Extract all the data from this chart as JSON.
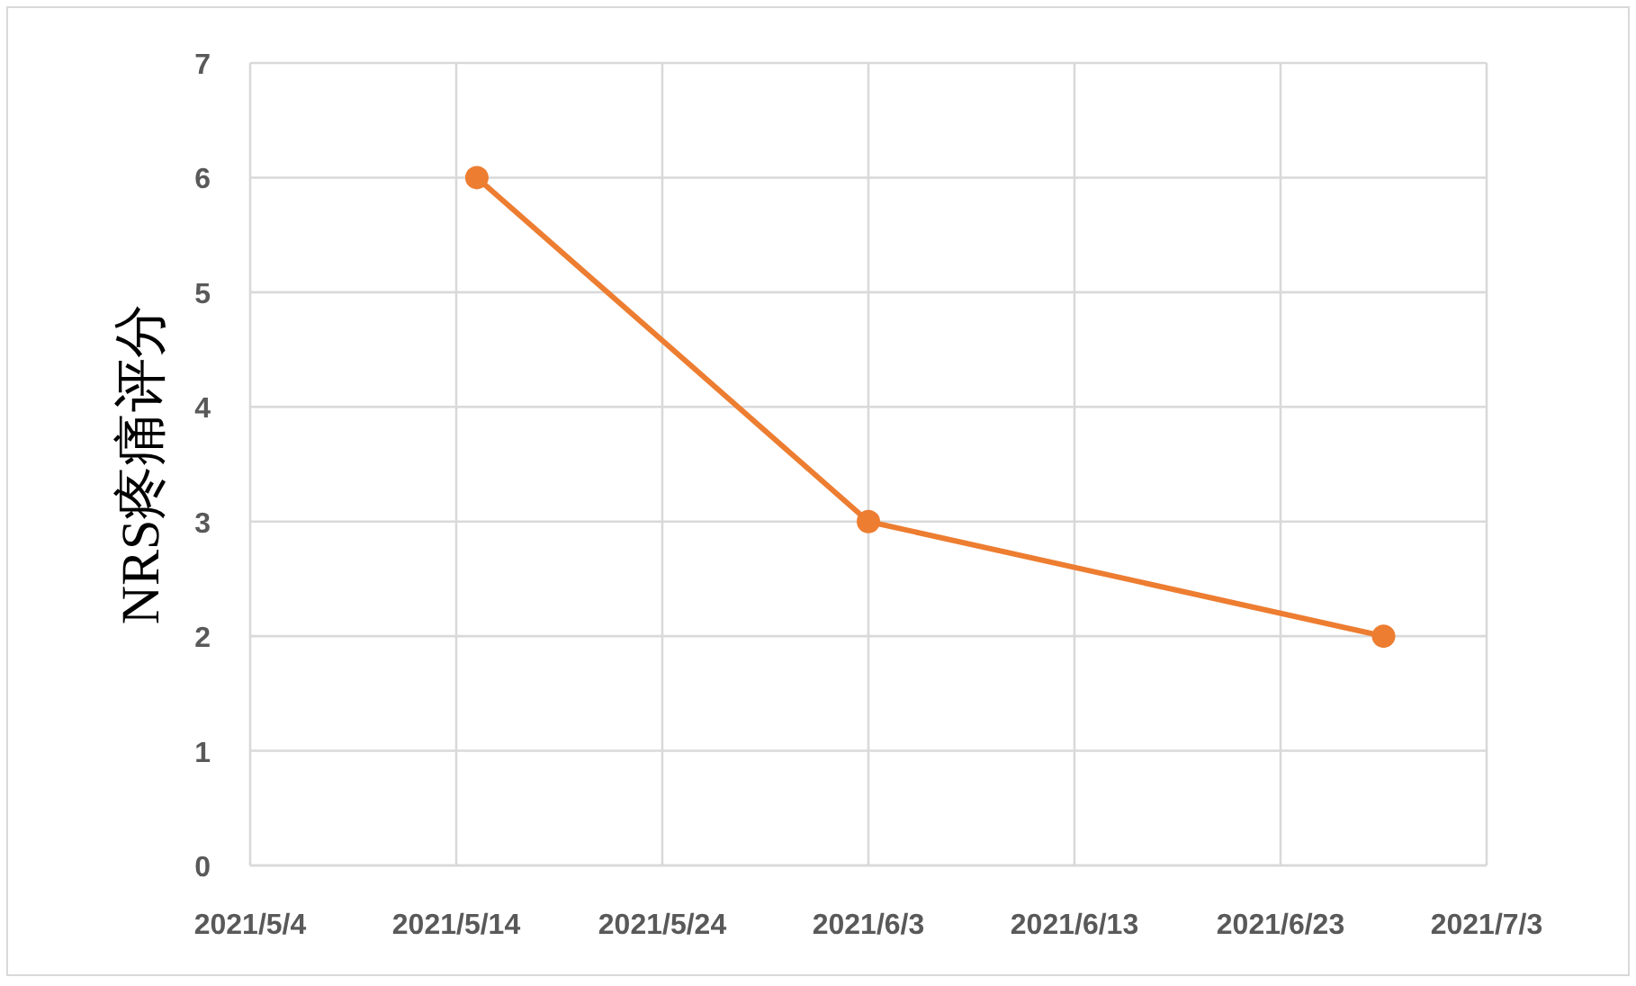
{
  "chart_data": {
    "type": "line",
    "ylabel": "NRS疼痛评分",
    "x": [
      "2021-05-15",
      "2021-06-03",
      "2021-06-28"
    ],
    "series": [
      {
        "color": "#ed7d31",
        "values": [
          6,
          3,
          2
        ]
      }
    ],
    "xlim": [
      "2021-05-04",
      "2021-07-03"
    ],
    "xticks": [
      {
        "value": "2021-05-04",
        "label": "2021/5/4"
      },
      {
        "value": "2021-05-14",
        "label": "2021/5/14"
      },
      {
        "value": "2021-05-24",
        "label": "2021/5/24"
      },
      {
        "value": "2021-06-03",
        "label": "2021/6/3"
      },
      {
        "value": "2021-06-13",
        "label": "2021/6/13"
      },
      {
        "value": "2021-06-23",
        "label": "2021/6/23"
      },
      {
        "value": "2021-07-03",
        "label": "2021/7/3"
      }
    ],
    "ylim": [
      0,
      7
    ],
    "yticks": [
      0,
      1,
      2,
      3,
      4,
      5,
      6,
      7
    ],
    "grid": true,
    "marker": "circle",
    "line_style": "solid"
  }
}
